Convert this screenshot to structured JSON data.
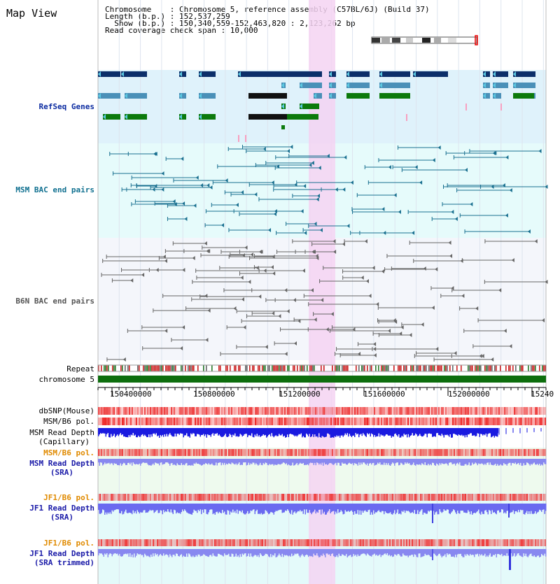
{
  "title": "Map View",
  "info": {
    "line1": "Chromosome    : Chromosome 5, reference assembly (C57BL/6J) (Build 37)",
    "line2": "Length (b.p.) : 152,537,259",
    "line3": "  Show (b.p.) : 150,340,559-152,463,820 : 2,123,262 bp",
    "line4": "Read coverage check span : 10,000"
  },
  "tracks": {
    "refseq": "RefSeq Genes",
    "msm_bac": "MSM BAC end pairs",
    "b6n_bac": "B6N BAC end pairs",
    "repeat": "Repeat",
    "chromosome": "chromosome 5",
    "dbsnp": "dbSNP(Mouse)",
    "msm_b6_pol": "MSM/B6 pol.",
    "msm_depth_cap1": "MSM Read Depth",
    "msm_depth_cap2": "(Capillary)",
    "msm_b6_pol2": "MSM/B6 pol.",
    "msm_depth_sra1": "MSM Read Depth",
    "msm_depth_sra2": "(SRA)",
    "jf1_b6_pol": "JF1/B6 pol.",
    "jf1_depth_sra1": "JF1 Read Depth",
    "jf1_depth_sra2": "(SRA)",
    "jf1_b6_pol2": "JF1/B6 pol.",
    "jf1_depth_trim1": "JF1 Read Depth",
    "jf1_depth_trim2": "(SRA trimmed)"
  },
  "ruler_ticks": [
    "150400000",
    "150800000",
    "151200000",
    "151600000",
    "152000000",
    "15240"
  ],
  "colors": {
    "refseq_bg": "#dff2fb",
    "msm_bg": "#e6fbfb",
    "b6n_bg": "#f4f6fb",
    "highlight": "#f5d3f2",
    "gene_dark": "#0c2f6a",
    "gene_mid": "#4a90b8",
    "gene_green": "#0c7a0c",
    "chromosome": "#0d6e0d",
    "pol_red": "#ee3a3a",
    "depth_blue": "#1a1ae0",
    "depth_light": "#8888f0"
  }
}
